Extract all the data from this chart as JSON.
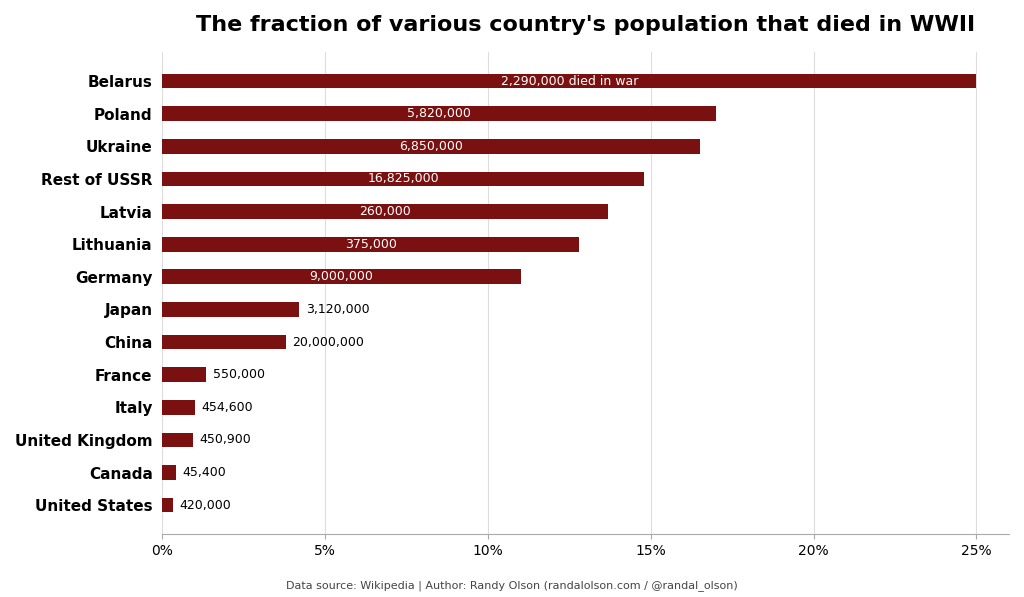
{
  "title": "The fraction of various country's population that died in WWII",
  "countries": [
    "United States",
    "Canada",
    "United Kingdom",
    "Italy",
    "France",
    "China",
    "Japan",
    "Germany",
    "Lithuania",
    "Latvia",
    "Rest of USSR",
    "Ukraine",
    "Poland",
    "Belarus"
  ],
  "percentages": [
    0.0032,
    0.0042,
    0.0094,
    0.01,
    0.0135,
    0.038,
    0.042,
    0.11,
    0.128,
    0.137,
    0.148,
    0.165,
    0.17,
    0.25
  ],
  "labels": [
    "420,000",
    "45,400",
    "450,900",
    "454,600",
    "550,000",
    "20,000,000",
    "3,120,000",
    "9,000,000",
    "375,000",
    "260,000",
    "16,825,000",
    "6,850,000",
    "5,820,000",
    "2,290,000 died in war"
  ],
  "label_inside_threshold": 0.05,
  "bar_color": "#7b1010",
  "background_color": "#ffffff",
  "source_text": "Data source: Wikipedia | Author: Randy Olson (randalolson.com / @randal_olson)",
  "title_fontsize": 16,
  "label_fontsize": 9,
  "ytick_fontsize": 11,
  "xtick_fontsize": 10,
  "xlim": [
    0,
    0.26
  ],
  "bar_height": 0.45
}
